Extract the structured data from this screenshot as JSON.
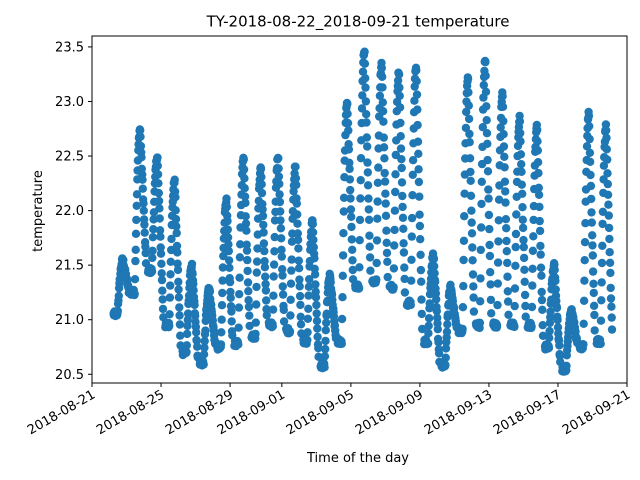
{
  "chart_data": {
    "type": "scatter",
    "title": "TY-2018-08-22_2018-09-21 temperature",
    "xlabel": "Time of the day",
    "ylabel": "temperature",
    "x_type": "date",
    "xlim": [
      "2018-08-21",
      "2018-09-21"
    ],
    "ylim": [
      20.42,
      23.6
    ],
    "x_ticks": [
      "2018-08-21",
      "2018-08-25",
      "2018-08-29",
      "2018-09-01",
      "2018-09-05",
      "2018-09-09",
      "2018-09-13",
      "2018-09-17",
      "2018-09-21"
    ],
    "y_ticks": [
      20.5,
      21.0,
      21.5,
      22.0,
      22.5,
      23.0,
      23.5
    ],
    "y_tick_labels": [
      "20.5",
      "21.0",
      "21.5",
      "22.0",
      "22.5",
      "23.0",
      "23.5"
    ],
    "marker_color": "#1f77b4",
    "grid": false,
    "legend": "none",
    "series": [
      {
        "daily_profile": [
          {
            "date": "2018-08-22",
            "min": 21.05,
            "max": 21.55
          },
          {
            "date": "2018-08-23",
            "min": 21.25,
            "max": 22.75
          },
          {
            "date": "2018-08-24",
            "min": 21.45,
            "max": 22.5
          },
          {
            "date": "2018-08-25",
            "min": 20.95,
            "max": 22.28
          },
          {
            "date": "2018-08-26",
            "min": 20.7,
            "max": 21.5
          },
          {
            "date": "2018-08-27",
            "min": 20.6,
            "max": 21.3
          },
          {
            "date": "2018-08-28",
            "min": 20.75,
            "max": 22.1
          },
          {
            "date": "2018-08-29",
            "min": 20.78,
            "max": 22.5
          },
          {
            "date": "2018-08-30",
            "min": 20.85,
            "max": 22.4
          },
          {
            "date": "2018-08-31",
            "min": 20.95,
            "max": 22.5
          },
          {
            "date": "2018-09-01",
            "min": 20.9,
            "max": 22.4
          },
          {
            "date": "2018-09-02",
            "min": 20.8,
            "max": 21.9
          },
          {
            "date": "2018-09-03",
            "min": 20.58,
            "max": 21.4
          },
          {
            "date": "2018-09-04",
            "min": 20.8,
            "max": 23.0
          },
          {
            "date": "2018-09-05",
            "min": 21.3,
            "max": 23.48
          },
          {
            "date": "2018-09-06",
            "min": 21.35,
            "max": 23.35
          },
          {
            "date": "2018-09-07",
            "min": 21.3,
            "max": 23.28
          },
          {
            "date": "2018-09-08",
            "min": 21.15,
            "max": 23.33
          },
          {
            "date": "2018-09-09",
            "min": 20.8,
            "max": 21.6
          },
          {
            "date": "2018-09-10",
            "min": 20.58,
            "max": 21.3
          },
          {
            "date": "2018-09-11",
            "min": 20.9,
            "max": 23.22
          },
          {
            "date": "2018-09-12",
            "min": 20.95,
            "max": 23.38
          },
          {
            "date": "2018-09-13",
            "min": 20.95,
            "max": 23.07
          },
          {
            "date": "2018-09-14",
            "min": 20.95,
            "max": 22.85
          },
          {
            "date": "2018-09-15",
            "min": 20.95,
            "max": 22.78
          },
          {
            "date": "2018-09-16",
            "min": 20.75,
            "max": 21.5
          },
          {
            "date": "2018-09-17",
            "min": 20.55,
            "max": 21.1
          },
          {
            "date": "2018-09-18",
            "min": 20.75,
            "max": 22.9
          },
          {
            "date": "2018-09-19",
            "min": 20.8,
            "max": 22.78
          }
        ]
      }
    ]
  }
}
